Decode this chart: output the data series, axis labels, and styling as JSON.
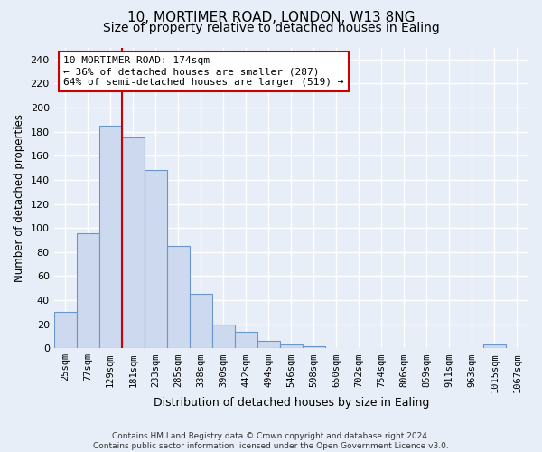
{
  "title1": "10, MORTIMER ROAD, LONDON, W13 8NG",
  "title2": "Size of property relative to detached houses in Ealing",
  "xlabel": "Distribution of detached houses by size in Ealing",
  "ylabel": "Number of detached properties",
  "bar_labels": [
    "25sqm",
    "77sqm",
    "129sqm",
    "181sqm",
    "233sqm",
    "285sqm",
    "338sqm",
    "390sqm",
    "442sqm",
    "494sqm",
    "546sqm",
    "598sqm",
    "650sqm",
    "702sqm",
    "754sqm",
    "806sqm",
    "859sqm",
    "911sqm",
    "963sqm",
    "1015sqm",
    "1067sqm"
  ],
  "bar_values": [
    30,
    96,
    185,
    175,
    148,
    85,
    45,
    20,
    14,
    6,
    3,
    2,
    0,
    0,
    0,
    0,
    0,
    0,
    0,
    3,
    0
  ],
  "bar_color": "#cdd9ee",
  "bar_edge_color": "#6a96cc",
  "vline_color": "#cc0000",
  "annotation_text": "10 MORTIMER ROAD: 174sqm\n← 36% of detached houses are smaller (287)\n64% of semi-detached houses are larger (519) →",
  "annotation_box_color": "white",
  "annotation_box_edge_color": "#cc0000",
  "ylim": [
    0,
    250
  ],
  "yticks": [
    0,
    20,
    40,
    60,
    80,
    100,
    120,
    140,
    160,
    180,
    200,
    220,
    240
  ],
  "footer": "Contains HM Land Registry data © Crown copyright and database right 2024.\nContains public sector information licensed under the Open Government Licence v3.0.",
  "bg_color": "#e8eef8",
  "plot_bg_color": "#e8eef8",
  "grid_color": "#ffffff",
  "title1_fontsize": 11,
  "title2_fontsize": 10,
  "vline_index": 2.5
}
